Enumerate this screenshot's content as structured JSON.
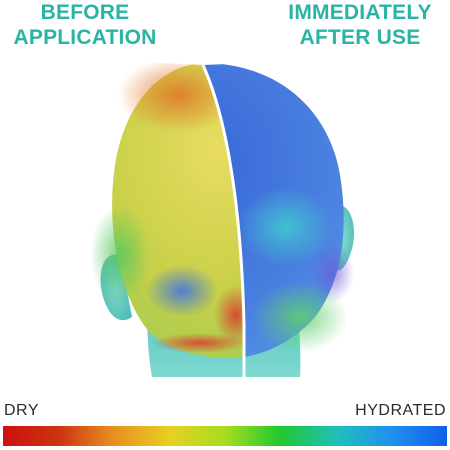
{
  "headings": {
    "before": {
      "line1": "BEFORE",
      "line2": "APPLICATION"
    },
    "after": {
      "line1": "IMMEDIATELY",
      "line2": "AFTER USE"
    }
  },
  "scale": {
    "low_label": "DRY",
    "high_label": "HYDRATED",
    "gradient_stops": [
      "#cc1010",
      "#cc3410",
      "#e89020",
      "#e8d020",
      "#a8dc20",
      "#20c830",
      "#20c0b8",
      "#2090f0",
      "#1060e8"
    ]
  },
  "colors": {
    "heading": "#2bb3a3",
    "label": "#2a2a2a",
    "skin_base": "#6fd0c8",
    "before_dominant": "#d4cf4a",
    "after_dominant": "#4a7fe0"
  }
}
